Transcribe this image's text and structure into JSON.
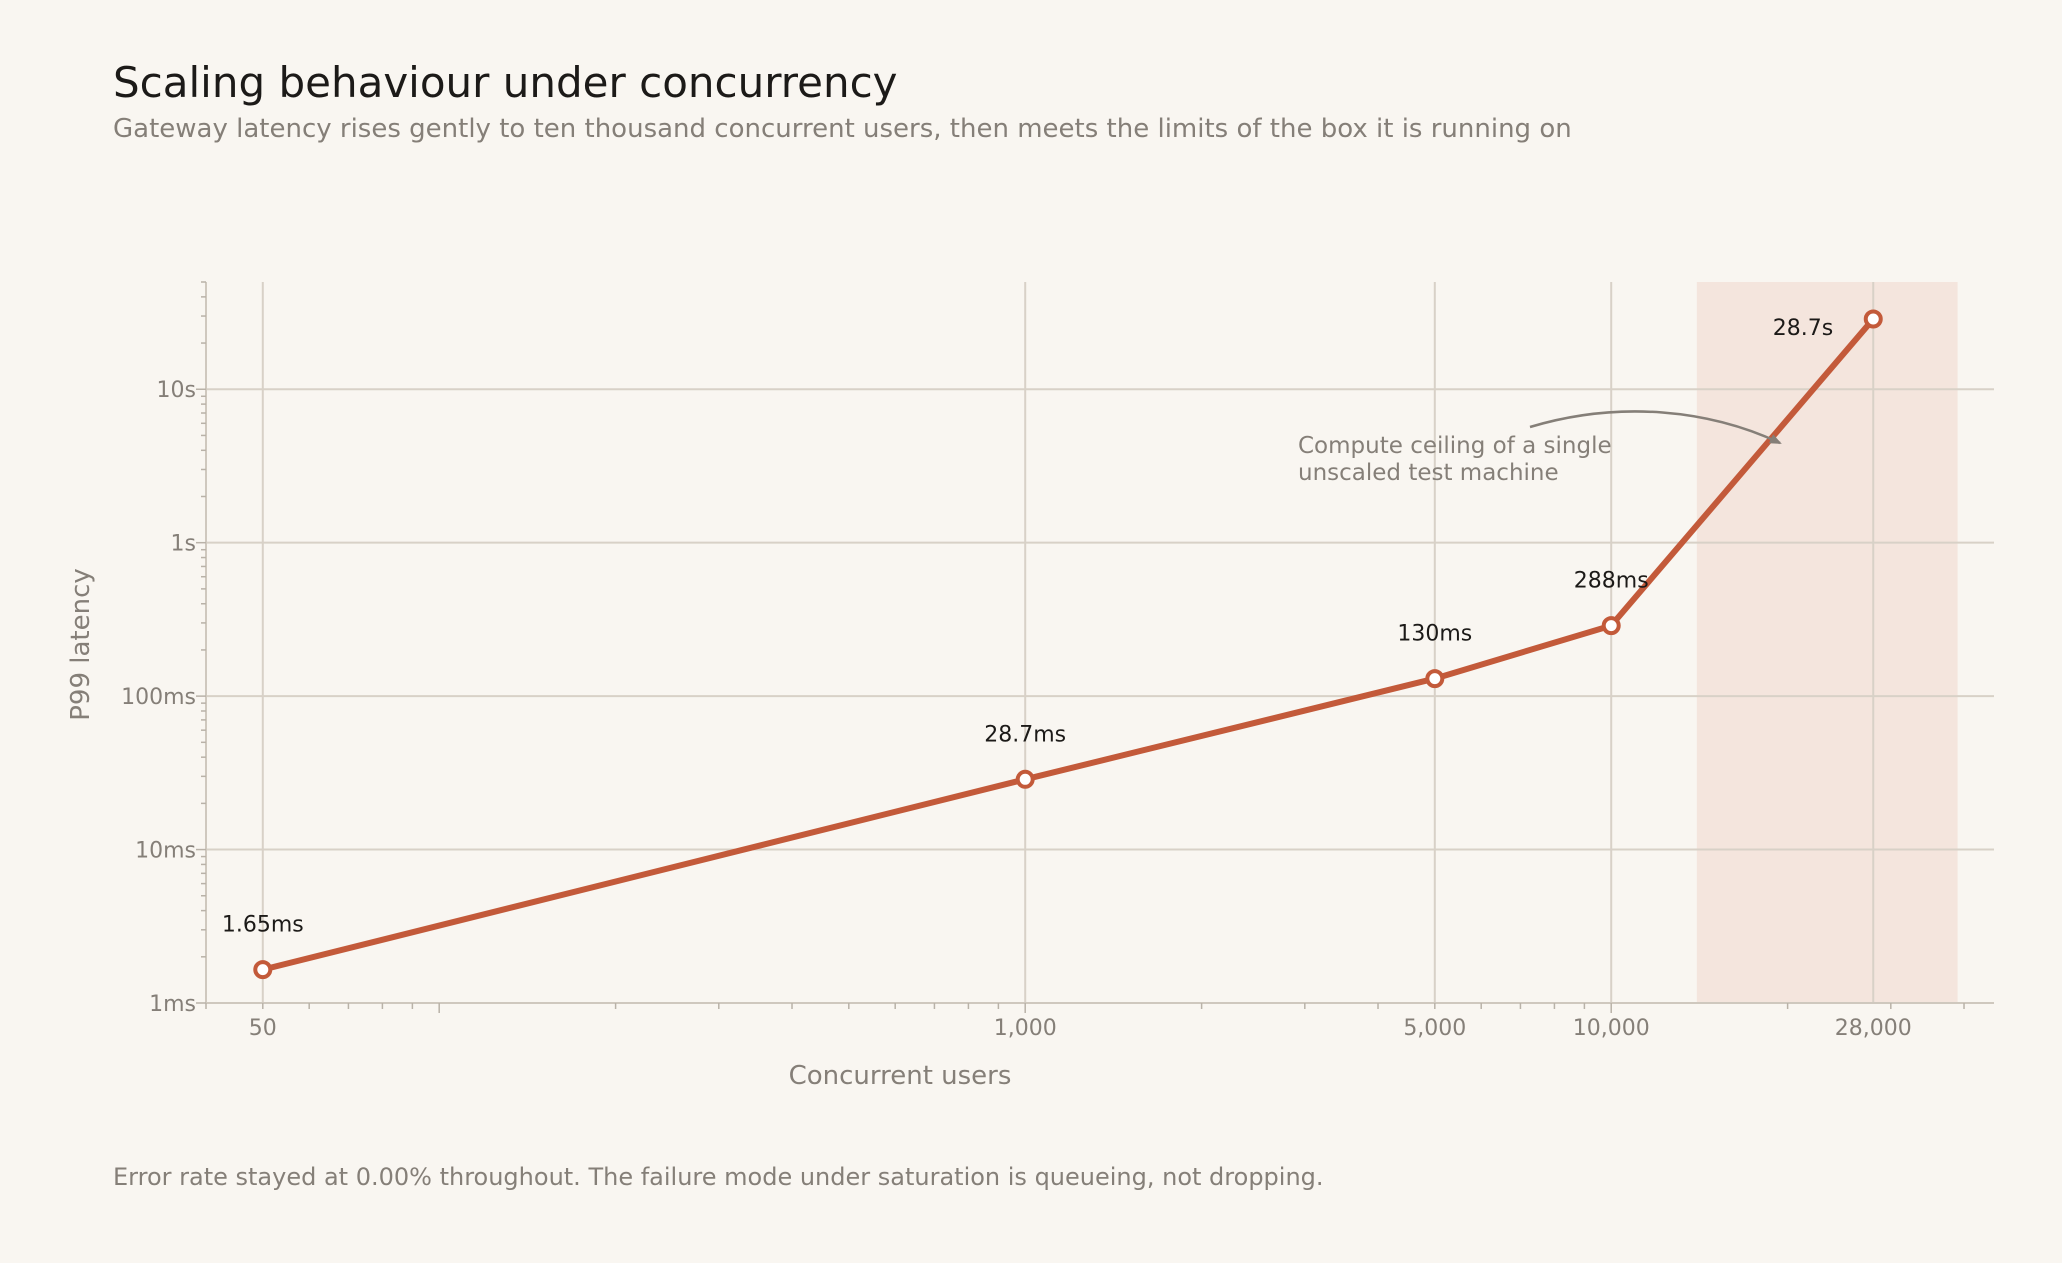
{
  "chart_data": {
    "type": "line",
    "title": "Scaling behaviour under concurrency",
    "subtitle": "Gateway latency rises gently to ten thousand concurrent users, then meets the limits of the box it is running on",
    "xlabel": "Concurrent users",
    "ylabel": "P99 latency",
    "x_scale": "log",
    "y_scale": "log",
    "x_ticks": [
      50,
      1000,
      5000,
      10000,
      28000
    ],
    "x_tick_labels": [
      "50",
      "1,000",
      "5,000",
      "10,000",
      "28,000"
    ],
    "y_ticks_ms": [
      1,
      10,
      100,
      1000,
      10000
    ],
    "y_tick_labels": [
      "1ms",
      "10ms",
      "100ms",
      "1s",
      "10s"
    ],
    "xlim": [
      40,
      45000
    ],
    "ylim_ms": [
      1,
      50000
    ],
    "grid": true,
    "series": [
      {
        "color": "#c35a3a",
        "points": [
          {
            "x": 50,
            "y_ms": 1.65,
            "label": "1.65ms"
          },
          {
            "x": 1000,
            "y_ms": 28.7,
            "label": "28.7ms"
          },
          {
            "x": 5000,
            "y_ms": 130,
            "label": "130ms"
          },
          {
            "x": 10000,
            "y_ms": 288,
            "label": "288ms"
          },
          {
            "x": 28000,
            "y_ms": 28700,
            "label": "28.7s"
          }
        ]
      }
    ],
    "highlight_region": {
      "x_from": 14000,
      "x_to": 39000,
      "color": "#f1dfd5",
      "annotation": [
        "Compute ceiling of a single",
        "unscaled test machine"
      ]
    },
    "note": "Error rate stayed at 0.00% throughout. The failure mode under saturation is queueing, not dropping."
  }
}
